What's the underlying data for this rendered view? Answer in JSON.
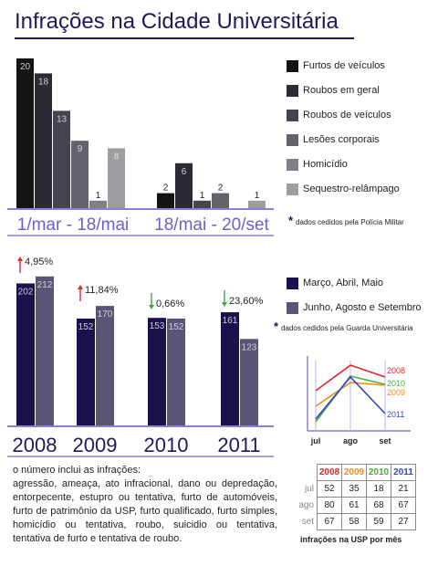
{
  "title": "Infrações na Cidade Universitária",
  "chart_data": [
    {
      "type": "bar",
      "categories": [
        "1/mar - 18/mai",
        "18/mai - 20/set"
      ],
      "series": [
        {
          "name": "Furtos de veículos",
          "color": "#141414",
          "values": [
            20,
            2
          ]
        },
        {
          "name": "Roubos em geral",
          "color": "#2b2b33",
          "values": [
            18,
            6
          ]
        },
        {
          "name": "Roubos de veículos",
          "color": "#46454f",
          "values": [
            13,
            1
          ]
        },
        {
          "name": "Lesões corporais",
          "color": "#64636b",
          "values": [
            9,
            2
          ]
        },
        {
          "name": "Homicídio",
          "color": "#808086",
          "values": [
            1,
            0
          ]
        },
        {
          "name": "Sequestro-relâmpago",
          "color": "#9e9ea2",
          "values": [
            8,
            1
          ]
        }
      ],
      "ylim": [
        0,
        20
      ],
      "note": "dados cedidos pela Polícia Militar"
    },
    {
      "type": "bar",
      "categories": [
        "2008",
        "2009",
        "2010",
        "2011"
      ],
      "series": [
        {
          "name": "Março, Abril, Maio",
          "color": "#1a124e",
          "values": [
            202,
            152,
            153,
            161
          ]
        },
        {
          "name": "Junho, Agosto e Setembro",
          "color": "#5a5577",
          "values": [
            212,
            170,
            152,
            123
          ]
        }
      ],
      "annotations": [
        {
          "text": "4,95%",
          "direction": "up"
        },
        {
          "text": "11,84%",
          "direction": "up"
        },
        {
          "text": "0,66%",
          "direction": "down"
        },
        {
          "text": "23,60%",
          "direction": "down"
        }
      ],
      "note": "dados cedidos pela Guarda Universitária"
    },
    {
      "type": "line",
      "x": [
        "jul",
        "ago",
        "set"
      ],
      "series": [
        {
          "name": "2008",
          "color": "#e0262b",
          "values": [
            52,
            80,
            67
          ]
        },
        {
          "name": "2010",
          "color": "#4cae3a",
          "values": [
            18,
            68,
            59
          ]
        },
        {
          "name": "2009",
          "color": "#f08a1c",
          "values": [
            35,
            61,
            58
          ]
        },
        {
          "name": "2011",
          "color": "#2f47c8",
          "values": [
            21,
            67,
            27
          ]
        }
      ],
      "ylim": [
        10,
        90
      ]
    },
    {
      "type": "table",
      "columns": [
        "2008",
        "2009",
        "2010",
        "2011"
      ],
      "column_colors": [
        "#e0262b",
        "#f08a1c",
        "#4cae3a",
        "#2f47c8"
      ],
      "rows": [
        {
          "label": "jul",
          "values": [
            52,
            35,
            18,
            21
          ]
        },
        {
          "label": "ago",
          "values": [
            80,
            61,
            68,
            67
          ]
        },
        {
          "label": "set",
          "values": [
            67,
            58,
            59,
            27
          ]
        }
      ],
      "caption": "infrações na USP por mês"
    }
  ],
  "text": {
    "lead": "o número inclui as infrações:",
    "body": "agressão, ameaça, ato infracional, dano ou depredação, entorpecente, estupro ou tentativa, furto de automóveis, furto de patrimônio da USP, furto qualificado, furto simples, homicídio ou tentativa, roubo, suicidio ou tentativa, tentativa de furto e tentativa de roubo."
  }
}
